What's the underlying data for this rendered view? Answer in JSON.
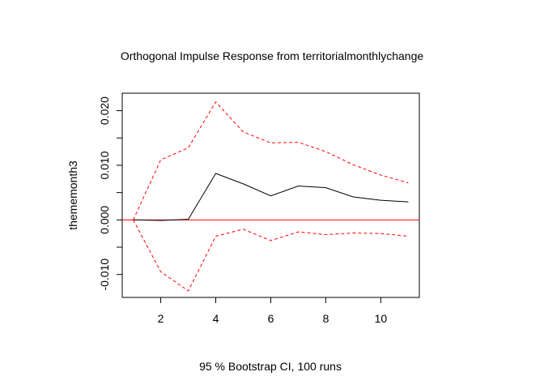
{
  "chart_data": {
    "type": "line",
    "title": "Orthogonal Impulse Response from territorialmonthlychange",
    "xlabel": "95 % Bootstrap CI,  100 runs",
    "ylabel": "thememonth3",
    "xlim": [
      0.6,
      11.4
    ],
    "ylim": [
      -0.0142,
      0.0232
    ],
    "x_ticks": [
      2,
      4,
      6,
      8,
      10
    ],
    "x_tick_labels": [
      "2",
      "4",
      "6",
      "8",
      "10"
    ],
    "y_ticks": [
      -0.01,
      -0.005,
      0,
      0.005,
      0.01,
      0.015,
      0.02
    ],
    "y_tick_labels": [
      "-0.010",
      "",
      "0.000",
      "",
      "0.010",
      "",
      "0.020"
    ],
    "grid": false,
    "reference_line": {
      "y": 0,
      "color": "#ff0000"
    },
    "x": [
      1,
      2,
      3,
      4,
      5,
      6,
      7,
      8,
      9,
      10,
      11
    ],
    "series": [
      {
        "role": "response",
        "color": "#000000",
        "dash": "solid",
        "values": [
          0,
          -0.0001,
          0.0001,
          0.0085,
          0.0066,
          0.0044,
          0.0062,
          0.0059,
          0.0042,
          0.0036,
          0.0033
        ]
      },
      {
        "role": "upper",
        "color": "#ff0000",
        "dash": "dashed",
        "values": [
          0,
          0.011,
          0.0132,
          0.0216,
          0.0161,
          0.0141,
          0.0142,
          0.0125,
          0.0101,
          0.0082,
          0.0068
        ]
      },
      {
        "role": "lower",
        "color": "#ff0000",
        "dash": "dashed",
        "values": [
          0,
          -0.0095,
          -0.013,
          -0.003,
          -0.0017,
          -0.0038,
          -0.0022,
          -0.0027,
          -0.0024,
          -0.0025,
          -0.003
        ]
      }
    ]
  }
}
